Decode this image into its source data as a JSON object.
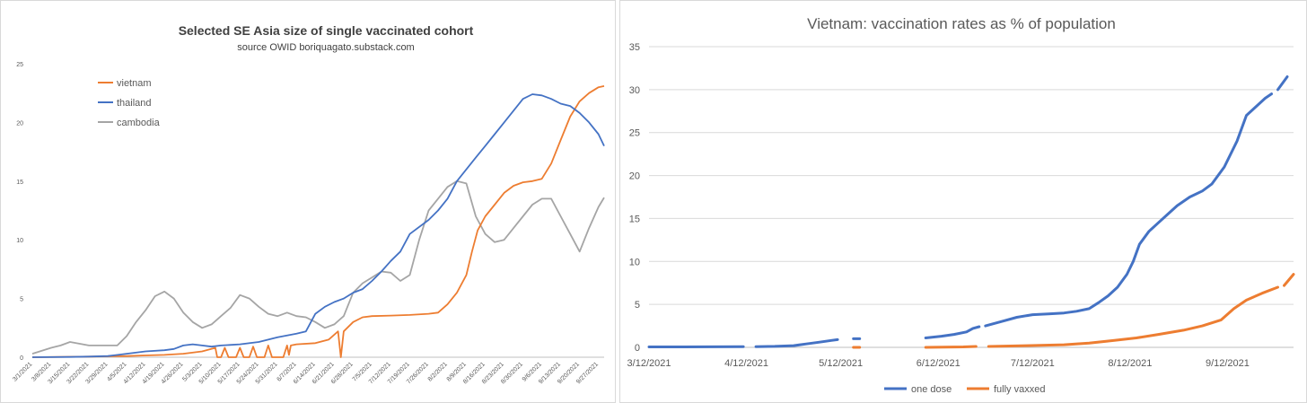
{
  "chart_data": [
    {
      "type": "line",
      "title": "Selected SE Asia size of single vaccinated cohort",
      "subtitle": "source OWID boriquagato.substack.com",
      "xlabel": "",
      "ylabel": "",
      "ylim": [
        0,
        25
      ],
      "yticks": [
        0,
        5,
        10,
        15,
        20,
        25
      ],
      "x_tick_labels": [
        "3/1/2021",
        "3/8/2021",
        "3/15/2021",
        "3/22/2021",
        "3/29/2021",
        "4/5/2021",
        "4/12/2021",
        "4/19/2021",
        "4/26/2021",
        "5/3/2021",
        "5/10/2021",
        "5/17/2021",
        "5/24/2021",
        "5/31/2021",
        "6/7/2021",
        "6/14/2021",
        "6/21/2021",
        "6/28/2021",
        "7/5/2021",
        "7/12/2021",
        "7/19/2021",
        "7/26/2021",
        "8/2/2021",
        "8/9/2021",
        "8/16/2021",
        "8/23/2021",
        "8/30/2021",
        "9/6/2021",
        "9/13/2021",
        "9/20/2021",
        "9/27/2021"
      ],
      "grid": false,
      "legend_position": "top-left",
      "x_unit": "week index (0 = 3/1/2021)",
      "series": [
        {
          "name": "vietnam",
          "color": "#ED7D31",
          "points": [
            [
              0,
              0.0
            ],
            [
              3,
              0.05
            ],
            [
              5,
              0.1
            ],
            [
              6,
              0.15
            ],
            [
              7,
              0.2
            ],
            [
              8,
              0.3
            ],
            [
              9,
              0.5
            ],
            [
              9.7,
              0.8
            ],
            [
              9.8,
              0.0
            ],
            [
              10.0,
              0.0
            ],
            [
              10.2,
              0.8
            ],
            [
              10.4,
              0.0
            ],
            [
              10.8,
              0.0
            ],
            [
              11.0,
              0.8
            ],
            [
              11.2,
              0.0
            ],
            [
              11.5,
              0.0
            ],
            [
              11.7,
              0.9
            ],
            [
              11.9,
              0.0
            ],
            [
              12.3,
              0.0
            ],
            [
              12.5,
              1.0
            ],
            [
              12.7,
              0.0
            ],
            [
              13.3,
              0.0
            ],
            [
              13.5,
              1.0
            ],
            [
              13.6,
              0.2
            ],
            [
              13.7,
              1.0
            ],
            [
              14,
              1.1
            ],
            [
              15,
              1.2
            ],
            [
              15.7,
              1.5
            ],
            [
              16.2,
              2.2
            ],
            [
              16.35,
              0.0
            ],
            [
              16.5,
              2.2
            ],
            [
              17,
              3.0
            ],
            [
              17.5,
              3.4
            ],
            [
              18,
              3.5
            ],
            [
              19,
              3.55
            ],
            [
              20,
              3.6
            ],
            [
              21,
              3.7
            ],
            [
              21.5,
              3.8
            ],
            [
              22,
              4.5
            ],
            [
              22.5,
              5.5
            ],
            [
              23,
              7.0
            ],
            [
              23.3,
              9.0
            ],
            [
              23.6,
              10.8
            ],
            [
              24,
              12.0
            ],
            [
              24.5,
              13.0
            ],
            [
              25,
              14.0
            ],
            [
              25.5,
              14.6
            ],
            [
              26,
              14.9
            ],
            [
              26.5,
              15.0
            ],
            [
              27,
              15.2
            ],
            [
              27.5,
              16.5
            ],
            [
              28,
              18.5
            ],
            [
              28.5,
              20.5
            ],
            [
              29,
              21.8
            ],
            [
              29.5,
              22.5
            ],
            [
              30,
              23.0
            ],
            [
              30.3,
              23.1
            ]
          ]
        },
        {
          "name": "thailand",
          "color": "#4472C4",
          "points": [
            [
              0,
              0.0
            ],
            [
              2,
              0.02
            ],
            [
              3,
              0.05
            ],
            [
              4,
              0.1
            ],
            [
              5,
              0.3
            ],
            [
              6,
              0.5
            ],
            [
              7,
              0.6
            ],
            [
              7.5,
              0.7
            ],
            [
              8,
              1.0
            ],
            [
              8.5,
              1.1
            ],
            [
              9,
              1.0
            ],
            [
              9.5,
              0.9
            ],
            [
              10,
              1.0
            ],
            [
              11,
              1.1
            ],
            [
              12,
              1.3
            ],
            [
              13,
              1.7
            ],
            [
              14,
              2.0
            ],
            [
              14.5,
              2.2
            ],
            [
              15,
              3.7
            ],
            [
              15.5,
              4.3
            ],
            [
              16,
              4.7
            ],
            [
              16.5,
              5.0
            ],
            [
              17,
              5.5
            ],
            [
              17.5,
              5.8
            ],
            [
              18,
              6.5
            ],
            [
              18.5,
              7.3
            ],
            [
              19,
              8.2
            ],
            [
              19.5,
              9.0
            ],
            [
              20,
              10.5
            ],
            [
              21,
              11.7
            ],
            [
              21.5,
              12.5
            ],
            [
              22,
              13.5
            ],
            [
              22.5,
              15.0
            ],
            [
              23,
              16.0
            ],
            [
              23.5,
              17.0
            ],
            [
              24,
              18.0
            ],
            [
              24.5,
              19.0
            ],
            [
              25,
              20.0
            ],
            [
              25.5,
              21.0
            ],
            [
              26,
              22.0
            ],
            [
              26.5,
              22.4
            ],
            [
              27,
              22.3
            ],
            [
              27.5,
              22.0
            ],
            [
              28,
              21.6
            ],
            [
              28.5,
              21.4
            ],
            [
              29,
              20.8
            ],
            [
              29.5,
              20.0
            ],
            [
              30,
              19.0
            ],
            [
              30.3,
              18.0
            ]
          ]
        },
        {
          "name": "cambodia",
          "color": "#A5A5A5",
          "points": [
            [
              0,
              0.3
            ],
            [
              1,
              0.8
            ],
            [
              1.5,
              1.0
            ],
            [
              2,
              1.3
            ],
            [
              3,
              1.0
            ],
            [
              4,
              1.0
            ],
            [
              4.5,
              1.0
            ],
            [
              5,
              1.8
            ],
            [
              5.5,
              3.0
            ],
            [
              6,
              4.0
            ],
            [
              6.5,
              5.2
            ],
            [
              7,
              5.6
            ],
            [
              7.5,
              5.0
            ],
            [
              8,
              3.8
            ],
            [
              8.5,
              3.0
            ],
            [
              9,
              2.5
            ],
            [
              9.5,
              2.8
            ],
            [
              10,
              3.5
            ],
            [
              10.5,
              4.2
            ],
            [
              11,
              5.3
            ],
            [
              11.5,
              5.0
            ],
            [
              12,
              4.3
            ],
            [
              12.5,
              3.7
            ],
            [
              13,
              3.5
            ],
            [
              13.5,
              3.8
            ],
            [
              14,
              3.5
            ],
            [
              14.5,
              3.4
            ],
            [
              15,
              3.0
            ],
            [
              15.5,
              2.5
            ],
            [
              16,
              2.8
            ],
            [
              16.5,
              3.5
            ],
            [
              17,
              5.5
            ],
            [
              17.5,
              6.3
            ],
            [
              18,
              6.8
            ],
            [
              18.5,
              7.3
            ],
            [
              19,
              7.2
            ],
            [
              19.5,
              6.5
            ],
            [
              20,
              7.0
            ],
            [
              20.5,
              10.0
            ],
            [
              21,
              12.5
            ],
            [
              21.5,
              13.5
            ],
            [
              22,
              14.5
            ],
            [
              22.5,
              15.0
            ],
            [
              23,
              14.8
            ],
            [
              23.5,
              12.0
            ],
            [
              24,
              10.5
            ],
            [
              24.5,
              9.8
            ],
            [
              25,
              10.0
            ],
            [
              25.5,
              11.0
            ],
            [
              26,
              12.0
            ],
            [
              26.5,
              13.0
            ],
            [
              27,
              13.5
            ],
            [
              27.5,
              13.5
            ],
            [
              28,
              12.0
            ],
            [
              28.5,
              10.5
            ],
            [
              29,
              9.0
            ],
            [
              29.5,
              11.0
            ],
            [
              30,
              12.8
            ],
            [
              30.3,
              13.6
            ]
          ]
        }
      ]
    },
    {
      "type": "line",
      "title": "Vietnam:  vaccination rates as % of population",
      "xlabel": "",
      "ylabel": "",
      "ylim": [
        0,
        35
      ],
      "yticks": [
        0,
        5,
        10,
        15,
        20,
        25,
        30,
        35
      ],
      "x_tick_labels": [
        "3/12/2021",
        "4/12/2021",
        "5/12/2021",
        "6/12/2021",
        "7/12/2021",
        "8/12/2021",
        "9/12/2021"
      ],
      "x_tick_days": [
        0,
        31,
        61,
        92,
        122,
        153,
        184
      ],
      "xlim_days": [
        0,
        205
      ],
      "x_unit": "days since 3/12/2021",
      "grid": true,
      "legend_position": "bottom",
      "series": [
        {
          "name": "one dose",
          "color": "#4472C4",
          "segments": [
            [
              [
                0,
                0.05
              ],
              [
                20,
                0.06
              ],
              [
                30,
                0.07
              ]
            ],
            [
              [
                34,
                0.08
              ],
              [
                40,
                0.12
              ],
              [
                46,
                0.2
              ],
              [
                50,
                0.4
              ],
              [
                54,
                0.6
              ],
              [
                58,
                0.8
              ],
              [
                60,
                0.9
              ]
            ],
            [
              [
                65,
                1.0
              ],
              [
                67,
                1.0
              ]
            ],
            [
              [
                88,
                1.1
              ],
              [
                93,
                1.3
              ],
              [
                97,
                1.5
              ],
              [
                101,
                1.8
              ],
              [
                103,
                2.2
              ],
              [
                105,
                2.4
              ]
            ],
            [
              [
                107,
                2.5
              ],
              [
                112,
                3.0
              ],
              [
                117,
                3.5
              ],
              [
                122,
                3.8
              ],
              [
                127,
                3.9
              ],
              [
                132,
                4.0
              ],
              [
                136,
                4.2
              ],
              [
                140,
                4.5
              ],
              [
                143,
                5.2
              ],
              [
                146,
                6.0
              ],
              [
                149,
                7.0
              ],
              [
                152,
                8.5
              ],
              [
                154,
                10.0
              ],
              [
                156,
                12.0
              ],
              [
                159,
                13.5
              ],
              [
                162,
                14.5
              ],
              [
                165,
                15.5
              ],
              [
                168,
                16.5
              ],
              [
                172,
                17.5
              ],
              [
                176,
                18.2
              ],
              [
                179,
                19.0
              ],
              [
                183,
                21.0
              ],
              [
                187,
                24.0
              ],
              [
                190,
                27.0
              ],
              [
                193,
                28.0
              ],
              [
                196,
                29.0
              ],
              [
                198,
                29.5
              ]
            ],
            [
              [
                200,
                30.0
              ],
              [
                203,
                31.5
              ]
            ]
          ]
        },
        {
          "name": "fully vaxxed",
          "color": "#ED7D31",
          "segments": [
            [
              [
                65,
                0.0
              ],
              [
                67,
                0.0
              ]
            ],
            [
              [
                88,
                0.0
              ],
              [
                100,
                0.05
              ],
              [
                104,
                0.1
              ]
            ],
            [
              [
                108,
                0.1
              ],
              [
                120,
                0.2
              ],
              [
                132,
                0.3
              ],
              [
                140,
                0.5
              ],
              [
                148,
                0.8
              ],
              [
                155,
                1.1
              ],
              [
                162,
                1.5
              ],
              [
                170,
                2.0
              ],
              [
                176,
                2.5
              ],
              [
                182,
                3.2
              ],
              [
                186,
                4.5
              ],
              [
                190,
                5.5
              ],
              [
                195,
                6.3
              ],
              [
                200,
                7.0
              ]
            ],
            [
              [
                202,
                7.2
              ],
              [
                205,
                8.5
              ]
            ]
          ]
        }
      ]
    }
  ]
}
